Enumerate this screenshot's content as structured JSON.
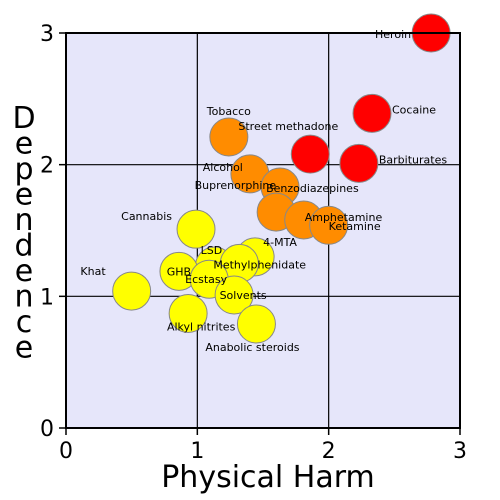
{
  "chart_data": {
    "type": "scatter",
    "title": "",
    "xlabel": "Physical Harm",
    "ylabel": "Dependence",
    "xlim": [
      0,
      3
    ],
    "ylim": [
      0,
      3
    ],
    "xticks": [
      "0",
      "1",
      "2",
      "3"
    ],
    "yticks": [
      "0",
      "1",
      "2",
      "3"
    ],
    "grid": true,
    "colors": {
      "plot_background": "#e6e6fa",
      "grid": "#000000",
      "red": "#ff0000",
      "orange": "#ff8c00",
      "yellow": "#ffff00",
      "outline": "#888888"
    },
    "points": [
      {
        "name": "Heroin",
        "x": 2.78,
        "y": 3.0,
        "color": "red"
      },
      {
        "name": "Cocaine",
        "x": 2.33,
        "y": 2.39,
        "color": "red"
      },
      {
        "name": "Street methadone",
        "x": 1.86,
        "y": 2.08,
        "color": "red"
      },
      {
        "name": "Barbiturates",
        "x": 2.23,
        "y": 2.01,
        "color": "red"
      },
      {
        "name": "Tobacco",
        "x": 1.24,
        "y": 2.21,
        "color": "orange"
      },
      {
        "name": "Alcohol",
        "x": 1.4,
        "y": 1.93,
        "color": "orange"
      },
      {
        "name": "Benzodiazepines",
        "x": 1.63,
        "y": 1.83,
        "color": "orange"
      },
      {
        "name": "Buprenorphine",
        "x": 1.6,
        "y": 1.64,
        "color": "orange"
      },
      {
        "name": "Amphetamine",
        "x": 1.81,
        "y": 1.58,
        "color": "orange"
      },
      {
        "name": "Ketamine",
        "x": 2.0,
        "y": 1.54,
        "color": "orange"
      },
      {
        "name": "Cannabis",
        "x": 0.99,
        "y": 1.51,
        "color": "yellow"
      },
      {
        "name": "4-MTA",
        "x": 1.44,
        "y": 1.3,
        "color": "yellow"
      },
      {
        "name": "LSD",
        "x": 1.13,
        "y": 1.23,
        "color": "yellow"
      },
      {
        "name": "Methylphenidate",
        "x": 1.32,
        "y": 1.25,
        "color": "yellow"
      },
      {
        "name": "GHB",
        "x": 0.86,
        "y": 1.19,
        "color": "yellow"
      },
      {
        "name": "Ecstasy",
        "x": 1.09,
        "y": 1.13,
        "color": "yellow"
      },
      {
        "name": "Khat",
        "x": 0.5,
        "y": 1.04,
        "color": "yellow"
      },
      {
        "name": "Solvents",
        "x": 1.28,
        "y": 1.01,
        "color": "yellow"
      },
      {
        "name": "Alkyl nitrites",
        "x": 0.93,
        "y": 0.87,
        "color": "yellow"
      },
      {
        "name": "Anabolic steroids",
        "x": 1.45,
        "y": 0.79,
        "color": "yellow"
      }
    ]
  }
}
